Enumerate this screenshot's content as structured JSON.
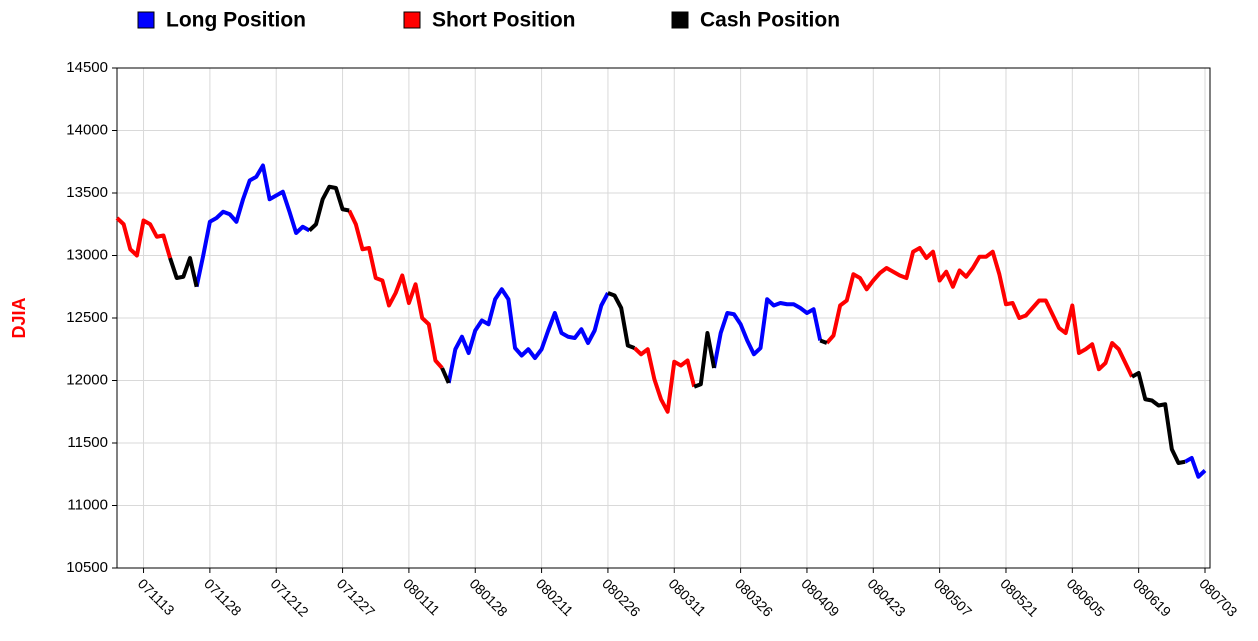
{
  "chart_data": {
    "type": "line",
    "ylabel": "DJIA",
    "ylim": [
      10500,
      14500
    ],
    "yticks": [
      10500,
      11000,
      11500,
      12000,
      12500,
      13000,
      13500,
      14000,
      14500
    ],
    "grid": true,
    "legend": "top",
    "categories": [
      null,
      null,
      null,
      null,
      "071113",
      null,
      null,
      null,
      null,
      null,
      null,
      null,
      null,
      null,
      "071128",
      null,
      null,
      null,
      null,
      null,
      null,
      null,
      null,
      null,
      "071212",
      null,
      null,
      null,
      null,
      null,
      null,
      null,
      null,
      null,
      "071227",
      null,
      null,
      null,
      null,
      null,
      null,
      null,
      null,
      null,
      "080111",
      null,
      null,
      null,
      null,
      null,
      null,
      null,
      null,
      null,
      "080128",
      null,
      null,
      null,
      null,
      null,
      null,
      null,
      null,
      null,
      "080211",
      null,
      null,
      null,
      null,
      null,
      null,
      null,
      null,
      null,
      "080226",
      null,
      null,
      null,
      null,
      null,
      null,
      null,
      null,
      null,
      "080311",
      null,
      null,
      null,
      null,
      null,
      null,
      null,
      null,
      null,
      "080326",
      null,
      null,
      null,
      null,
      null,
      null,
      null,
      null,
      null,
      "080409",
      null,
      null,
      null,
      null,
      null,
      null,
      null,
      null,
      null,
      "080423",
      null,
      null,
      null,
      null,
      null,
      null,
      null,
      null,
      null,
      "080507",
      null,
      null,
      null,
      null,
      null,
      null,
      null,
      null,
      null,
      "080521",
      null,
      null,
      null,
      null,
      null,
      null,
      null,
      null,
      null,
      "080605",
      null,
      null,
      null,
      null,
      null,
      null,
      null,
      null,
      null,
      "080619",
      null,
      null,
      null,
      null,
      null,
      null,
      null,
      null,
      null,
      "080703"
    ],
    "series": [
      {
        "name": "Long Position",
        "color": "#0000ff",
        "values": [
          null,
          null,
          null,
          null,
          null,
          null,
          null,
          null,
          null,
          null,
          null,
          null,
          12750,
          13000,
          13270,
          13300,
          13350,
          13330,
          13270,
          13450,
          13600,
          13630,
          13720,
          13450,
          13480,
          13510,
          13350,
          13180,
          13230,
          13200,
          null,
          null,
          null,
          null,
          null,
          null,
          null,
          null,
          null,
          null,
          null,
          null,
          null,
          null,
          null,
          null,
          null,
          null,
          null,
          null,
          11980,
          12250,
          12350,
          12220,
          12400,
          12480,
          12450,
          12650,
          12730,
          12650,
          12260,
          12200,
          12250,
          12180,
          12250,
          12400,
          12540,
          12380,
          12350,
          12340,
          12410,
          12300,
          12400,
          12600,
          12700,
          null,
          null,
          null,
          null,
          null,
          null,
          null,
          null,
          null,
          null,
          null,
          null,
          null,
          null,
          null,
          12100,
          12380,
          12540,
          12530,
          12450,
          12320,
          12210,
          12260,
          12650,
          12600,
          12620,
          12610,
          12610,
          12580,
          12540,
          12570,
          12320,
          null,
          null,
          null,
          null,
          null,
          null,
          null,
          null,
          null,
          null,
          null,
          null,
          null,
          null,
          null,
          null,
          null,
          null,
          null,
          null,
          null,
          null,
          null,
          null,
          null,
          null,
          null,
          null,
          null,
          null,
          null,
          null,
          null,
          null,
          null,
          null,
          null,
          null,
          null,
          null,
          null,
          null,
          null,
          null,
          null,
          null,
          null,
          null,
          null,
          null,
          null,
          null,
          null,
          null,
          11350,
          11380,
          11230,
          11280
        ]
      },
      {
        "name": "Short Position",
        "color": "#ff0000",
        "values": [
          13300,
          13250,
          13050,
          13000,
          13280,
          13250,
          13150,
          13160,
          12980,
          null,
          null,
          null,
          null,
          null,
          null,
          null,
          null,
          null,
          null,
          null,
          null,
          null,
          null,
          null,
          null,
          null,
          null,
          null,
          null,
          null,
          null,
          null,
          null,
          null,
          null,
          13360,
          13250,
          13050,
          13060,
          12820,
          12800,
          12600,
          12700,
          12840,
          12620,
          12770,
          12500,
          12450,
          12160,
          12100,
          null,
          null,
          null,
          null,
          null,
          null,
          null,
          null,
          null,
          null,
          null,
          null,
          null,
          null,
          null,
          null,
          null,
          null,
          null,
          null,
          null,
          null,
          null,
          null,
          null,
          null,
          null,
          null,
          12260,
          12210,
          12250,
          12010,
          11850,
          11750,
          12150,
          12120,
          12160,
          11950,
          null,
          null,
          null,
          null,
          null,
          null,
          null,
          null,
          null,
          null,
          null,
          null,
          null,
          null,
          null,
          null,
          null,
          null,
          null,
          12300,
          12360,
          12600,
          12640,
          12850,
          12820,
          12730,
          12800,
          12860,
          12900,
          12870,
          12840,
          12820,
          13030,
          13060,
          12980,
          13030,
          12800,
          12870,
          12750,
          12880,
          12830,
          12900,
          12990,
          12990,
          13030,
          12850,
          12610,
          12620,
          12500,
          12520,
          12580,
          12640,
          12640,
          12530,
          12420,
          12380,
          12600,
          12220,
          12250,
          12290,
          12090,
          12140,
          12300,
          12250,
          12140,
          12030,
          null,
          null,
          null,
          null,
          null,
          null,
          null,
          null,
          null,
          null,
          null
        ]
      },
      {
        "name": "Cash Position",
        "color": "#000000",
        "values": [
          null,
          null,
          null,
          null,
          null,
          null,
          null,
          null,
          12980,
          12820,
          12830,
          12980,
          12750,
          null,
          null,
          null,
          null,
          null,
          null,
          null,
          null,
          null,
          null,
          null,
          null,
          null,
          null,
          null,
          null,
          13200,
          13250,
          13450,
          13550,
          13540,
          13370,
          13360,
          null,
          null,
          null,
          null,
          null,
          null,
          null,
          null,
          null,
          null,
          null,
          null,
          null,
          12100,
          11980,
          null,
          null,
          null,
          null,
          null,
          null,
          null,
          null,
          null,
          null,
          null,
          null,
          null,
          null,
          null,
          null,
          null,
          null,
          null,
          null,
          null,
          null,
          null,
          12700,
          12680,
          12580,
          12280,
          12260,
          null,
          null,
          null,
          null,
          null,
          null,
          null,
          null,
          11950,
          11970,
          12380,
          12100,
          null,
          null,
          null,
          null,
          null,
          null,
          null,
          null,
          null,
          null,
          null,
          null,
          null,
          null,
          null,
          12320,
          12300,
          null,
          null,
          null,
          null,
          null,
          null,
          null,
          null,
          null,
          null,
          null,
          null,
          null,
          null,
          null,
          null,
          null,
          null,
          null,
          null,
          null,
          null,
          null,
          null,
          null,
          null,
          null,
          null,
          null,
          null,
          null,
          null,
          null,
          null,
          null,
          null,
          null,
          null,
          null,
          null,
          null,
          null,
          null,
          null,
          null,
          12030,
          12060,
          11850,
          11840,
          11800,
          11810,
          11450,
          11340,
          11350,
          null,
          null,
          null
        ]
      }
    ]
  }
}
